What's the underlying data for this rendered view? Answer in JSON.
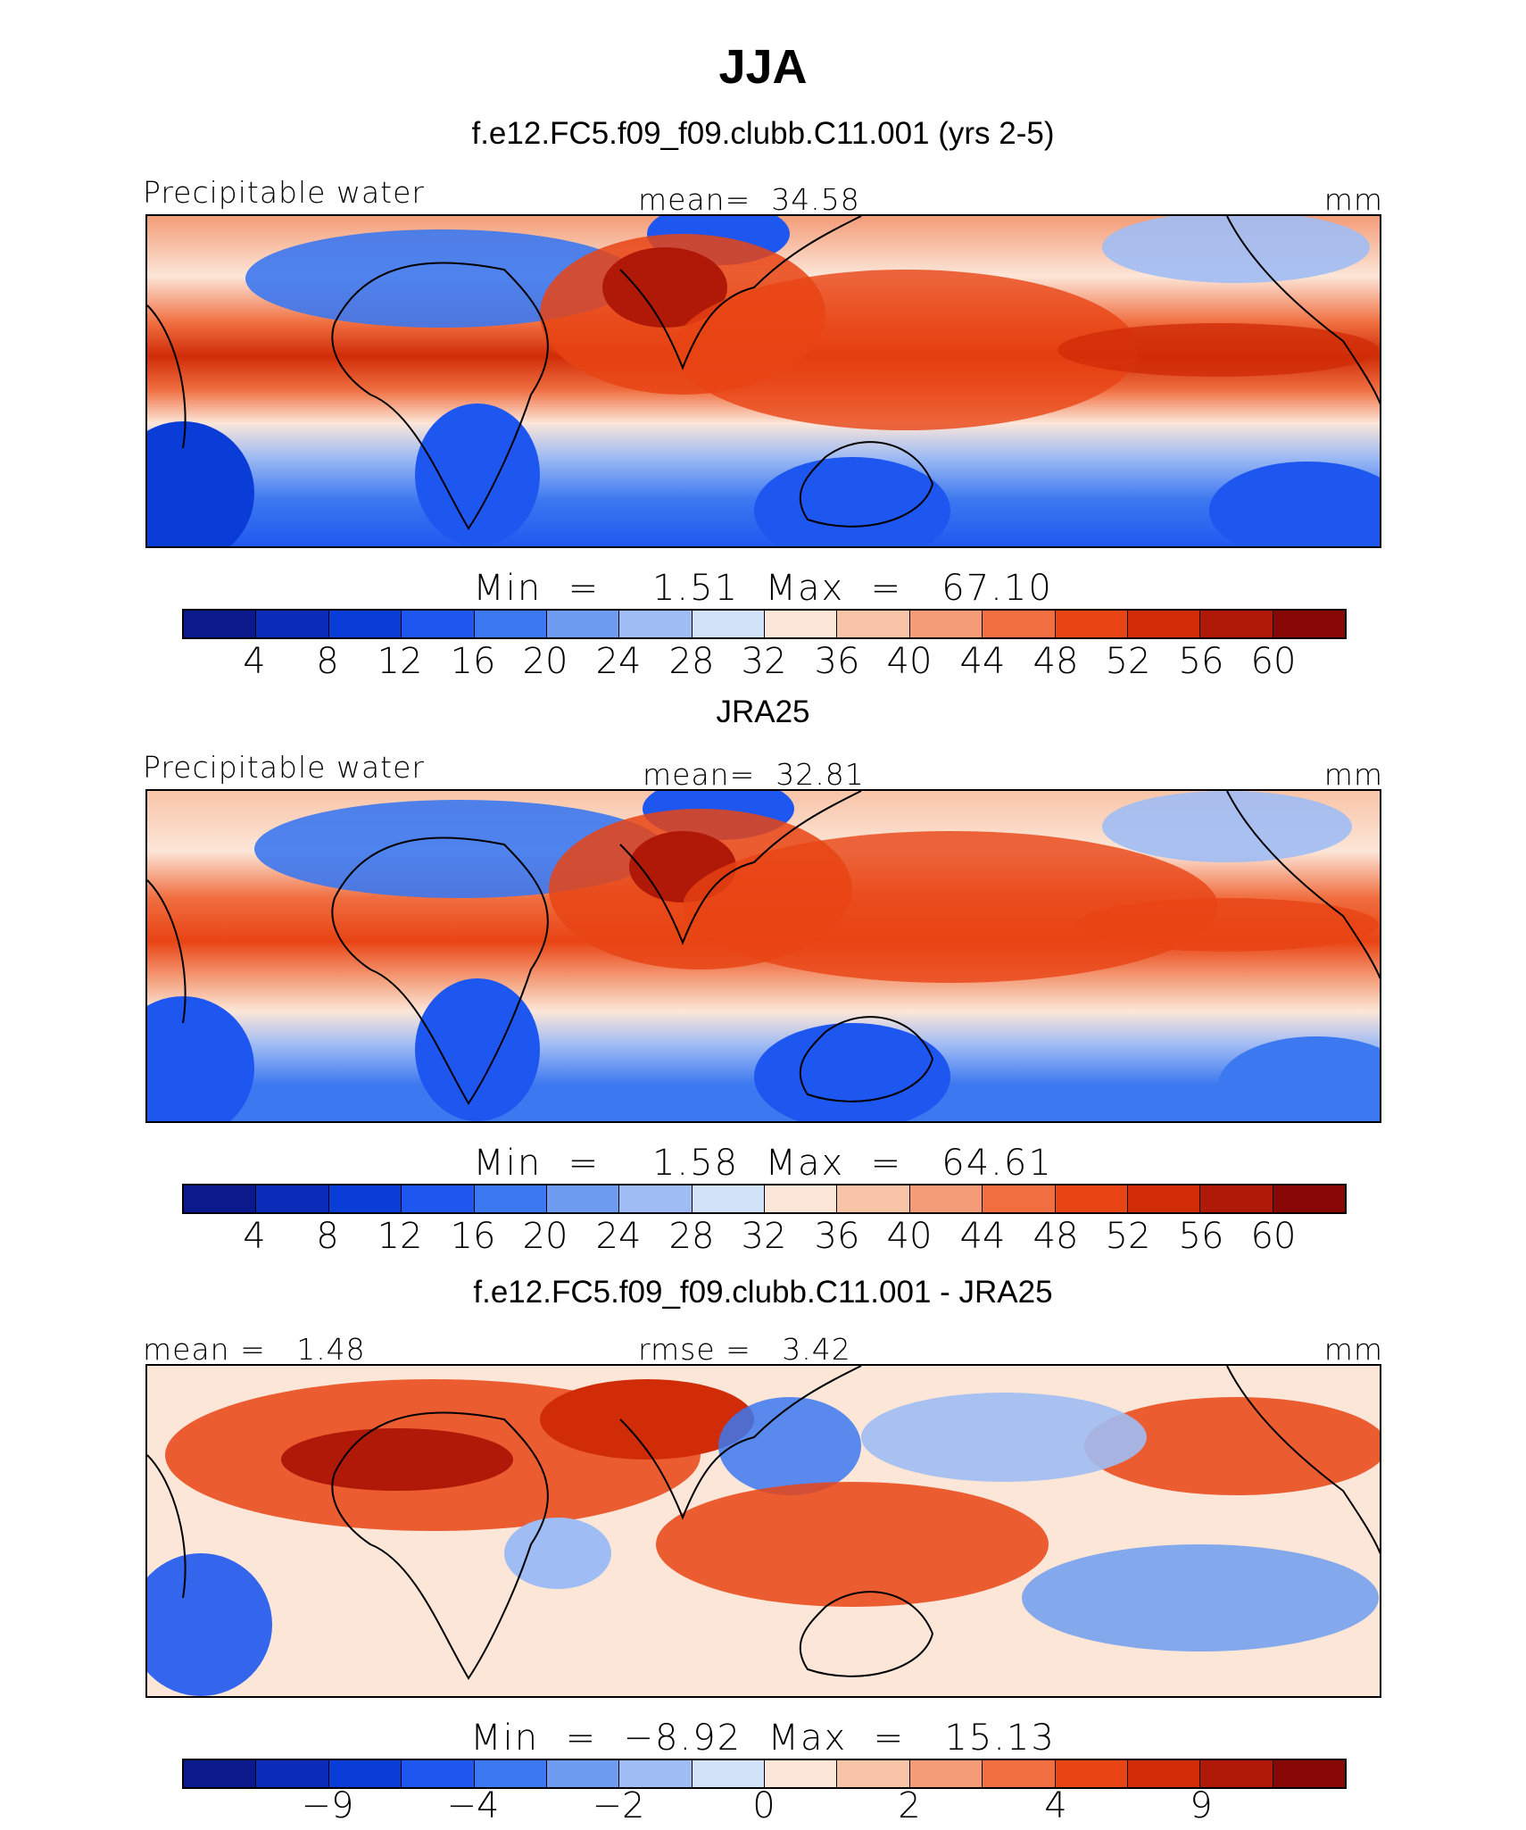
{
  "title": "JJA",
  "colormap": [
    "#0a1a8c",
    "#0a2cb8",
    "#0a3cd8",
    "#1e56f0",
    "#3c78f0",
    "#6e9cf0",
    "#a0bcf4",
    "#d2e2f8",
    "#fce6d8",
    "#f8c4a8",
    "#f49c78",
    "#f06e40",
    "#e84414",
    "#d02c08",
    "#b01808",
    "#880808"
  ],
  "panels": [
    {
      "id": "model",
      "title": "f.e12.FC5.f09_f09.clubb.C11.001 (yrs 2-5)",
      "left_label": "Precipitable water",
      "center_label": "mean=  34.58",
      "right_label": "mm",
      "minmax_text": "Min  =    1.51  Max  =   67.10",
      "tick_labels": [
        "4",
        "8",
        "12",
        "16",
        "20",
        "24",
        "28",
        "32",
        "36",
        "40",
        "44",
        "48",
        "52",
        "56",
        "60"
      ]
    },
    {
      "id": "obs",
      "title": "JRA25",
      "left_label": "Precipitable water",
      "center_label": "mean=  32.81",
      "right_label": "mm",
      "minmax_text": "Min  =    1.58  Max  =   64.61",
      "tick_labels": [
        "4",
        "8",
        "12",
        "16",
        "20",
        "24",
        "28",
        "32",
        "36",
        "40",
        "44",
        "48",
        "52",
        "56",
        "60"
      ]
    },
    {
      "id": "diff",
      "title": "f.e12.FC5.f09_f09.clubb.C11.001 - JRA25",
      "left_label": "mean =   1.48",
      "center_label": "rmse =   3.42",
      "right_label": "mm",
      "minmax_text": "Min  =  −8.92  Max  =   15.13",
      "tick_labels": [
        "−9",
        "−4",
        "−2",
        "0",
        "2",
        "4",
        "9"
      ]
    }
  ]
}
